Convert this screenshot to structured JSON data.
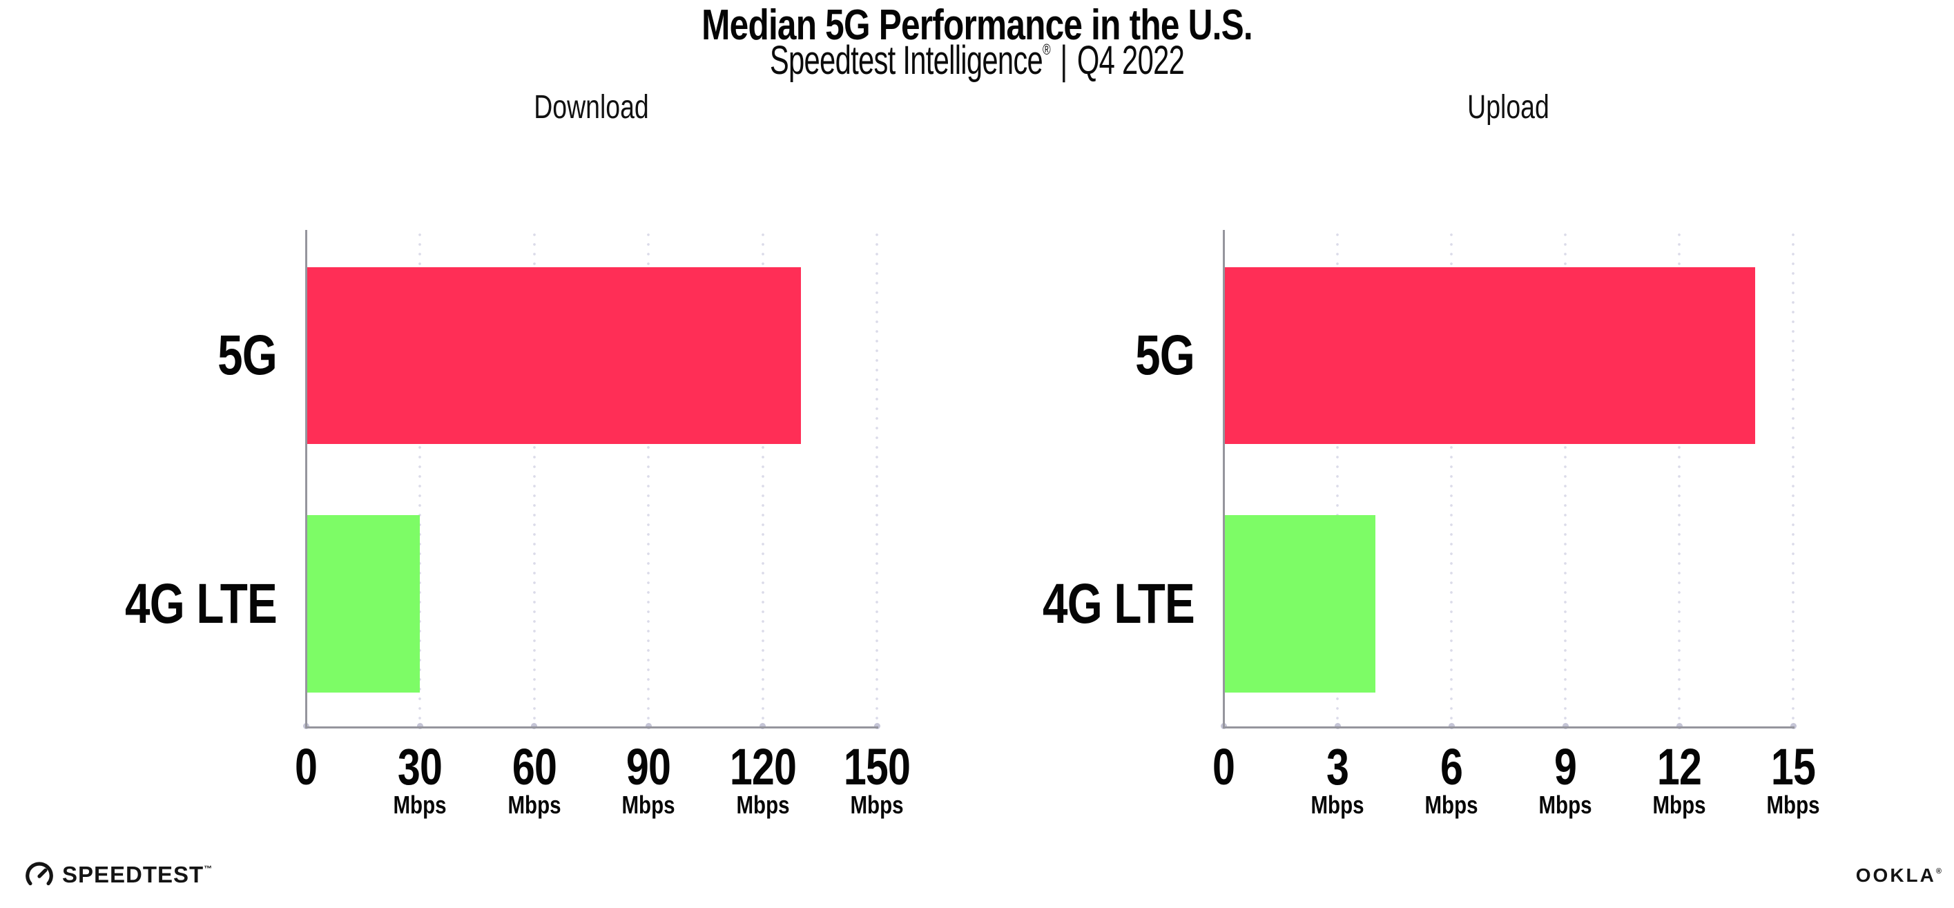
{
  "header": {
    "title": "Median 5G Performance in the U.S.",
    "subtitle_brand": "Speedtest Intelligence",
    "subtitle_reg": "®",
    "subtitle_sep": "|",
    "subtitle_period": "Q4 2022"
  },
  "chart_data": [
    {
      "type": "bar",
      "orientation": "horizontal",
      "title": "Download",
      "categories": [
        "5G",
        "4G LTE"
      ],
      "values": [
        130,
        30
      ],
      "unit": "Mbps",
      "xticks": [
        0,
        30,
        60,
        90,
        120,
        150
      ],
      "tick_unit_label": "Mbps",
      "xlim": [
        0,
        155
      ],
      "grid": "dotted-vertical",
      "bar_colors": [
        "#FF2E56",
        "#7DFC66"
      ],
      "axis_color": "#95959D"
    },
    {
      "type": "bar",
      "orientation": "horizontal",
      "title": "Upload",
      "categories": [
        "5G",
        "4G LTE"
      ],
      "values": [
        14,
        4
      ],
      "unit": "Mbps",
      "xticks": [
        0,
        3,
        6,
        9,
        12,
        15
      ],
      "tick_unit_label": "Mbps",
      "xlim": [
        0,
        15.5
      ],
      "grid": "dotted-vertical",
      "bar_colors": [
        "#FF2E56",
        "#7DFC66"
      ],
      "axis_color": "#95959D"
    }
  ],
  "footer": {
    "speedtest_label": "SPEEDTEST",
    "speedtest_tm": "™",
    "ookla_label": "OOKLA",
    "ookla_reg": "®"
  }
}
